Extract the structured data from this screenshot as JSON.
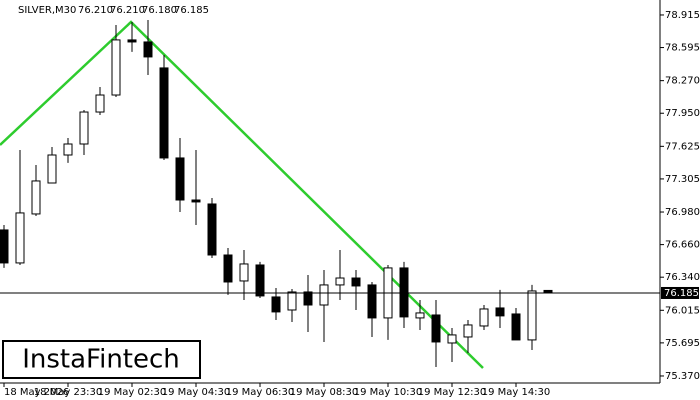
{
  "header": {
    "symbol": "SILVER,M30",
    "quote": [
      "76.210",
      "76.210",
      "76.180",
      "76.185"
    ]
  },
  "logo": "InstaFintech",
  "chart_data": {
    "type": "candlestick",
    "categories": [
      "18 May 2026",
      null,
      null,
      null,
      "18 May 23:30",
      null,
      null,
      null,
      "19 May 02:30",
      null,
      null,
      null,
      "19 May 04:30",
      null,
      null,
      null,
      "19 May 06:30",
      null,
      null,
      null,
      "19 May 08:30",
      null,
      null,
      null,
      "19 May 10:30",
      null,
      null,
      null,
      "19 May 12:30",
      null,
      null,
      null,
      "19 May 14:30",
      null,
      null
    ],
    "open": [
      76.804,
      76.48,
      76.961,
      77.265,
      77.54,
      77.648,
      77.962,
      78.129,
      78.67,
      78.65,
      78.395,
      77.511,
      77.098,
      77.059,
      76.558,
      76.303,
      76.46,
      76.146,
      76.018,
      76.195,
      76.067,
      76.264,
      76.332,
      76.264,
      75.94,
      76.431,
      75.94,
      75.969,
      75.694,
      75.753,
      75.861,
      76.038,
      75.979,
      75.724,
      76.21
    ],
    "high": [
      76.853,
      77.589,
      77.442,
      77.619,
      77.707,
      77.982,
      78.208,
      78.817,
      78.846,
      78.866,
      78.522,
      77.707,
      77.589,
      77.118,
      76.627,
      76.607,
      76.49,
      76.234,
      76.224,
      76.362,
      76.411,
      76.607,
      76.411,
      76.293,
      76.46,
      76.49,
      76.116,
      76.116,
      75.841,
      75.92,
      76.067,
      76.215,
      76.038,
      76.264,
      76.21
    ],
    "low": [
      76.431,
      76.46,
      76.941,
      77.265,
      77.462,
      77.54,
      77.933,
      78.11,
      78.552,
      78.326,
      77.491,
      76.98,
      76.853,
      76.529,
      76.166,
      76.116,
      76.136,
      75.92,
      75.9,
      75.802,
      75.704,
      76.116,
      76.018,
      75.753,
      75.724,
      75.841,
      75.822,
      75.458,
      75.507,
      75.596,
      75.822,
      75.841,
      75.724,
      75.625,
      76.18
    ],
    "close": [
      76.48,
      76.971,
      77.285,
      77.54,
      77.648,
      77.962,
      78.129,
      78.67,
      78.65,
      78.503,
      77.511,
      77.098,
      77.079,
      76.558,
      76.293,
      76.47,
      76.156,
      75.999,
      76.195,
      76.067,
      76.264,
      76.332,
      76.254,
      75.94,
      76.431,
      75.95,
      75.989,
      75.704,
      75.773,
      75.871,
      76.028,
      75.96,
      75.724,
      76.205,
      76.185
    ],
    "ylim": [
      75.301,
      79.062
    ],
    "yticks": [
      78.915,
      78.595,
      {
        "value": 78.27,
        "label": "78.270"
      },
      {
        "value": 77.95,
        "label": "77.950"
      },
      77.625,
      77.305,
      {
        "value": 76.98,
        "label": "76.980"
      },
      {
        "value": 76.66,
        "label": "76.660"
      },
      {
        "value": 76.34,
        "label": "76.340"
      },
      76.015,
      75.695,
      {
        "value": 75.37,
        "label": "75.370"
      }
    ],
    "current_price": 76.185,
    "up_color": "#ffffff",
    "down_color": "#000000"
  }
}
